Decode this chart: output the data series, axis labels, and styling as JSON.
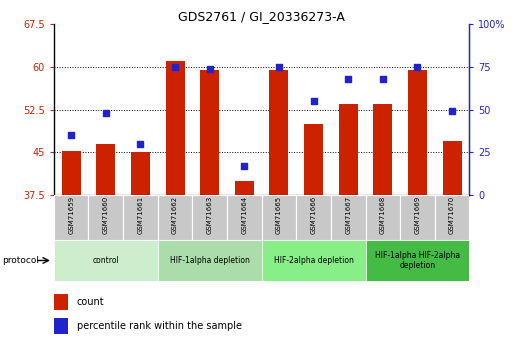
{
  "title": "GDS2761 / GI_20336273-A",
  "samples": [
    "GSM71659",
    "GSM71660",
    "GSM71661",
    "GSM71662",
    "GSM71663",
    "GSM71664",
    "GSM71665",
    "GSM71666",
    "GSM71667",
    "GSM71668",
    "GSM71669",
    "GSM71670"
  ],
  "counts": [
    45.2,
    46.5,
    45.0,
    61.0,
    59.5,
    40.0,
    59.5,
    50.0,
    53.5,
    53.5,
    59.5,
    47.0
  ],
  "percentiles": [
    35,
    48,
    30,
    75,
    74,
    17,
    75,
    55,
    68,
    68,
    75,
    49
  ],
  "ylim_left": [
    37.5,
    67.5
  ],
  "ylim_right": [
    0,
    100
  ],
  "yticks_left": [
    37.5,
    45.0,
    52.5,
    60.0,
    67.5
  ],
  "ytick_labels_left": [
    "37.5",
    "45",
    "52.5",
    "60",
    "67.5"
  ],
  "yticks_right": [
    0,
    25,
    50,
    75,
    100
  ],
  "ytick_labels_right": [
    "0",
    "25",
    "50",
    "75",
    "100%"
  ],
  "gridlines": [
    45.0,
    52.5,
    60.0
  ],
  "bar_color": "#CC2200",
  "dot_color": "#2222CC",
  "protocol_groups": [
    {
      "label": "control",
      "start": 0,
      "end": 3,
      "color": "#CCEECC"
    },
    {
      "label": "HIF-1alpha depletion",
      "start": 3,
      "end": 6,
      "color": "#AADDAA"
    },
    {
      "label": "HIF-2alpha depletion",
      "start": 6,
      "end": 9,
      "color": "#88EE88"
    },
    {
      "label": "HIF-1alpha HIF-2alpha\ndepletion",
      "start": 9,
      "end": 12,
      "color": "#44BB44"
    }
  ],
  "legend_count_label": "count",
  "legend_pct_label": "percentile rank within the sample",
  "baseline": 37.5,
  "label_bg_color": "#C8C8C8"
}
